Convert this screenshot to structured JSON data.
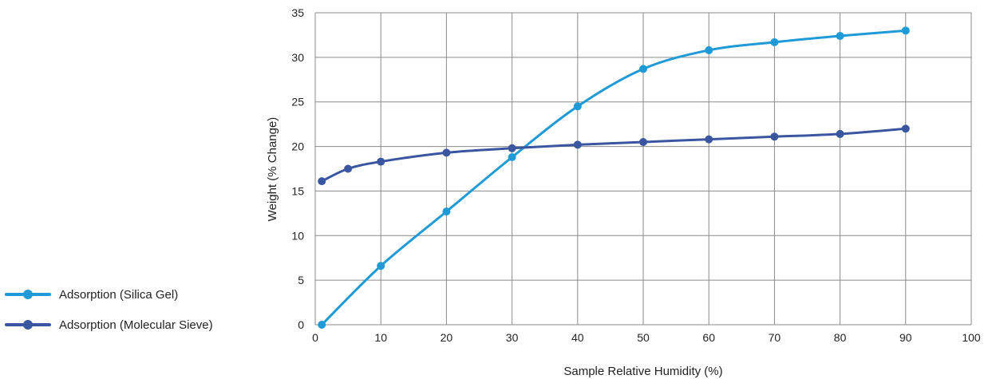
{
  "chart_data": {
    "type": "line",
    "title": "",
    "xlabel": "Sample Relative Humidity (%)",
    "ylabel": "Weight (% Change)",
    "xlim": [
      0,
      100
    ],
    "ylim": [
      0,
      35
    ],
    "x_ticks": [
      0,
      10,
      20,
      30,
      40,
      50,
      60,
      70,
      80,
      90,
      100
    ],
    "y_ticks": [
      0,
      5,
      10,
      15,
      20,
      25,
      30,
      35
    ],
    "grid": true,
    "legend_position": "left",
    "series": [
      {
        "name": "Adsorption (Silica Gel)",
        "color": "#1f9ad6",
        "points": [
          [
            1,
            0
          ],
          [
            10,
            6.6
          ],
          [
            20,
            12.7
          ],
          [
            30,
            18.8
          ],
          [
            40,
            24.5
          ],
          [
            50,
            28.7
          ],
          [
            60,
            30.8
          ],
          [
            70,
            31.7
          ],
          [
            80,
            32.4
          ],
          [
            90,
            33.0
          ]
        ]
      },
      {
        "name": "Adsorption (Molecular Sieve)",
        "color": "#3a56a0",
        "points": [
          [
            1,
            16.1
          ],
          [
            5,
            17.5
          ],
          [
            10,
            18.3
          ],
          [
            20,
            19.3
          ],
          [
            30,
            19.8
          ],
          [
            40,
            20.2
          ],
          [
            50,
            20.5
          ],
          [
            60,
            20.8
          ],
          [
            70,
            21.1
          ],
          [
            80,
            21.4
          ],
          [
            90,
            22.0
          ]
        ]
      }
    ]
  }
}
